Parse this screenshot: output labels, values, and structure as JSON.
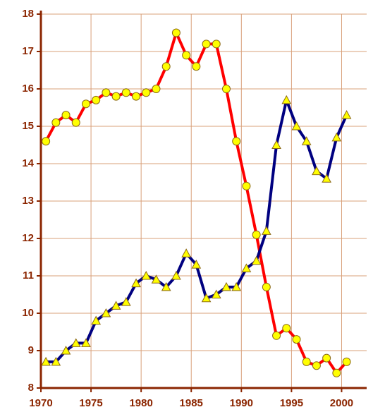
{
  "chart_data": {
    "type": "line",
    "x": [
      1970.5,
      1971.5,
      1972.5,
      1973.5,
      1974.5,
      1975.5,
      1976.5,
      1977.5,
      1978.5,
      1979.5,
      1980.5,
      1981.5,
      1982.5,
      1983.5,
      1984.5,
      1985.5,
      1986.5,
      1987.5,
      1988.5,
      1989.5,
      1990.5,
      1991.5,
      1992.5,
      1993.5,
      1994.5,
      1995.5,
      1996.5,
      1997.5,
      1998.5,
      1999.5,
      2000.5
    ],
    "series": [
      {
        "color": "#ff0000",
        "marker": "circle",
        "values": [
          14.6,
          15.1,
          15.3,
          15.1,
          15.6,
          15.7,
          15.9,
          15.8,
          15.9,
          15.8,
          15.9,
          16.0,
          16.6,
          17.5,
          16.9,
          16.6,
          17.2,
          17.2,
          16.0,
          14.6,
          13.4,
          12.1,
          10.7,
          9.4,
          9.6,
          9.3,
          8.7,
          8.6,
          8.8,
          8.4,
          8.7
        ]
      },
      {
        "color": "#000080",
        "marker": "triangle",
        "values": [
          8.7,
          8.7,
          9.0,
          9.2,
          9.2,
          9.8,
          10.0,
          10.2,
          10.3,
          10.8,
          11.0,
          10.9,
          10.7,
          11.0,
          11.6,
          11.3,
          10.4,
          10.5,
          10.7,
          10.7,
          11.2,
          11.4,
          12.2,
          14.5,
          15.7,
          15.0,
          14.6,
          13.8,
          13.6,
          14.7,
          15.3
        ]
      }
    ],
    "xlim": [
      1970,
      2002.5
    ],
    "xticks": [
      1970,
      1975,
      1980,
      1985,
      1990,
      1995,
      2000
    ],
    "ylim": [
      8,
      18
    ],
    "yticks": [
      8,
      9,
      10,
      11,
      12,
      13,
      14,
      15,
      16,
      17,
      18
    ],
    "grid": true
  }
}
